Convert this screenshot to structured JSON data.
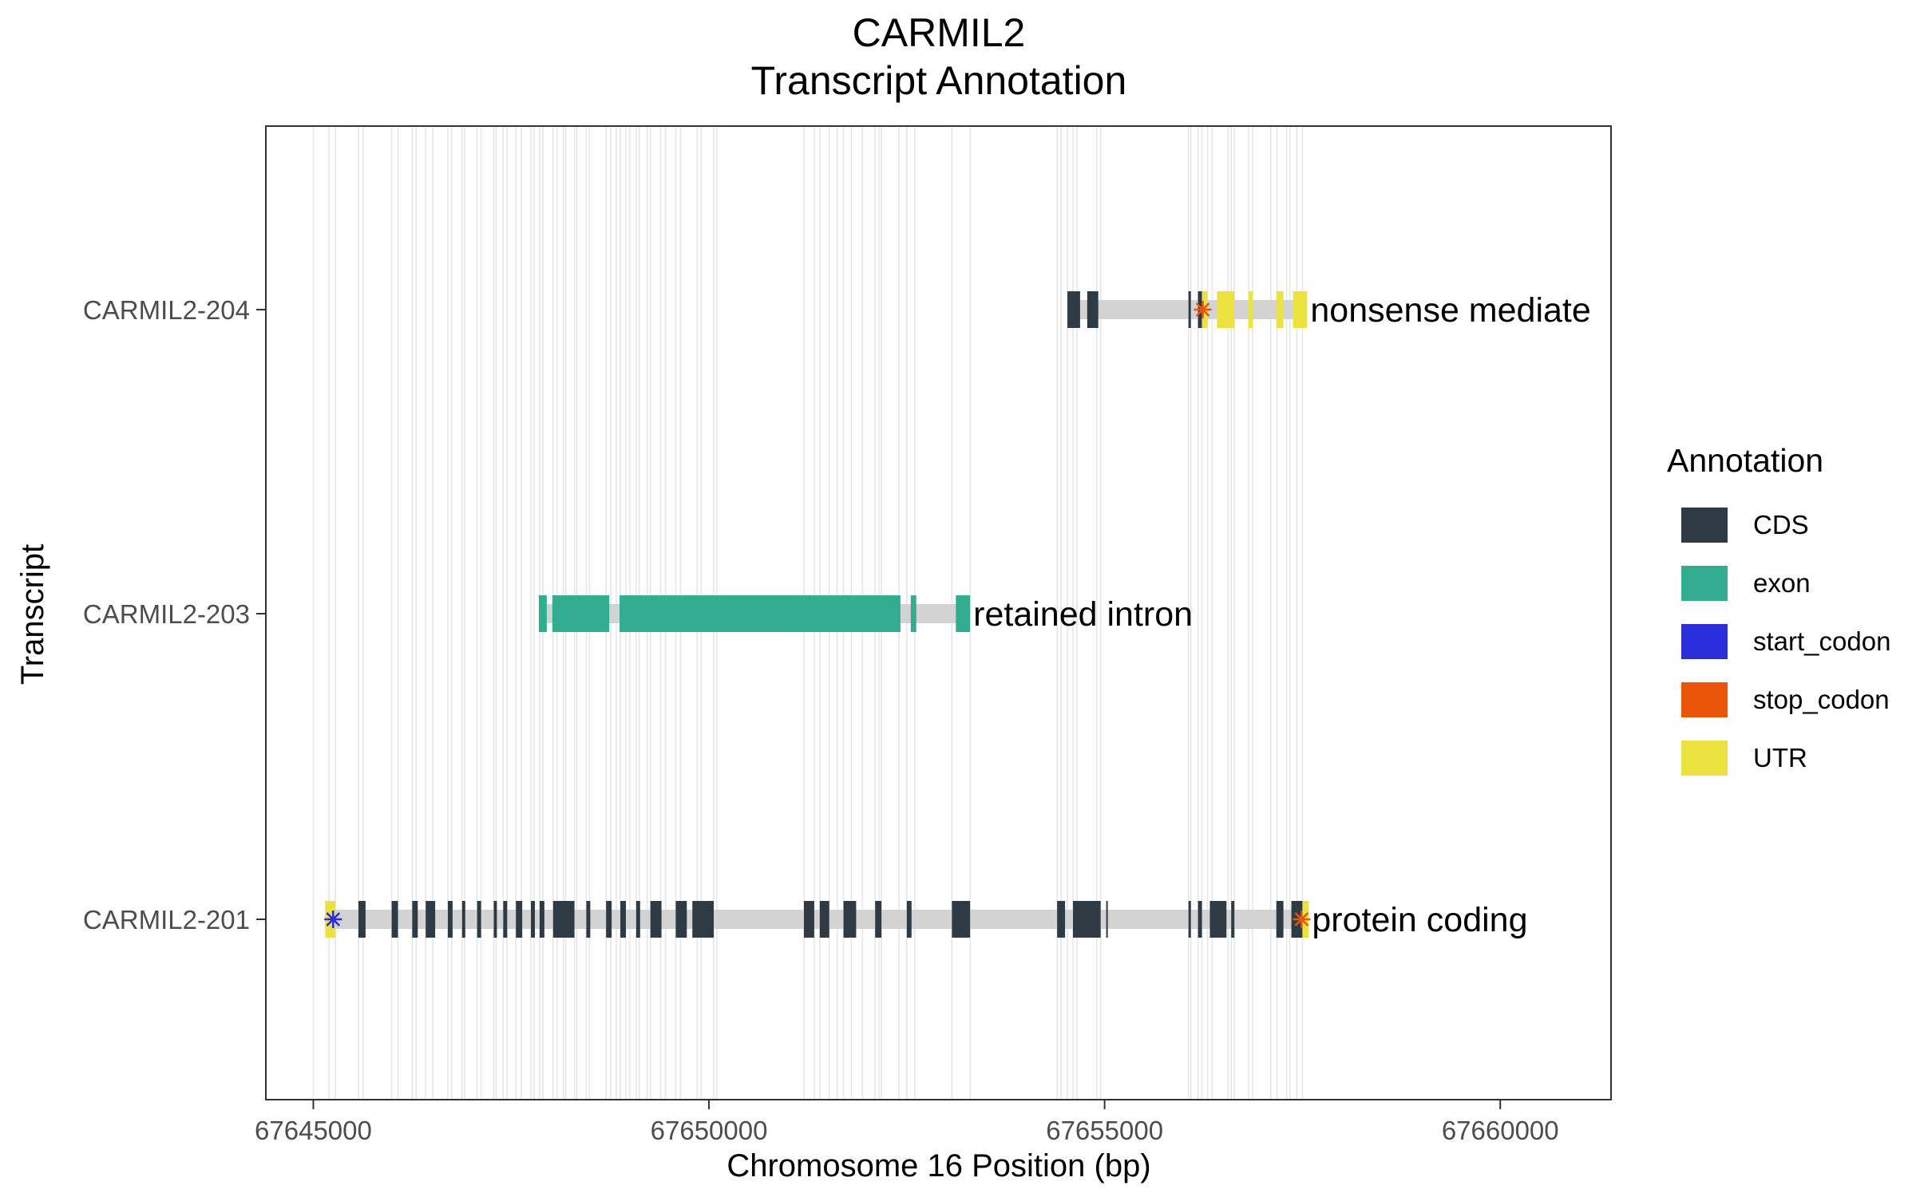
{
  "chart_data": {
    "type": "gene-structure",
    "title_line1": "CARMIL2",
    "title_line2": "Transcript Annotation",
    "xlabel": "Chromosome 16 Position (bp)",
    "ylabel": "Transcript",
    "xlim": [
      67644400,
      67661400
    ],
    "xticks": [
      67645000,
      67650000,
      67655000,
      67660000
    ],
    "xtick_labels": [
      "67645000",
      "67650000",
      "67655000",
      "67660000"
    ],
    "legend": {
      "title": "Annotation",
      "position": "right",
      "items": [
        {
          "label": "CDS",
          "color": "#2e3b45"
        },
        {
          "label": "exon",
          "color": "#33ad8f"
        },
        {
          "label": "start_codon",
          "color": "#2b2fdb"
        },
        {
          "label": "stop_codon",
          "color": "#eb5508"
        },
        {
          "label": "UTR",
          "color": "#ebe13f"
        }
      ]
    },
    "colors": {
      "CDS": "#2e3b45",
      "exon": "#33ad8f",
      "UTR": "#ebe13f",
      "start_codon": "#2b2fdb",
      "stop_codon": "#eb5508",
      "intron": "#d3d3d3",
      "gridline": "#e6e6e6"
    },
    "gridlines_x": [
      67645000,
      67645200,
      67645280,
      67645570,
      67645630,
      67645990,
      67646070,
      67646250,
      67646300,
      67646420,
      67646510,
      67646700,
      67646750,
      67646880,
      67646910,
      67647070,
      67647120,
      67647280,
      67647310,
      67647400,
      67647450,
      67647560,
      67647630,
      67647750,
      67647790,
      67647860,
      67647900,
      67648030,
      67648080,
      67648160,
      67648190,
      67648300,
      67648330,
      67648450,
      67648490,
      67648700,
      67648760,
      67648830,
      67648880,
      67648950,
      67649000,
      67649080,
      67649120,
      67649220,
      67649260,
      67649390,
      67649450,
      67649580,
      67649640,
      67649850,
      67649900,
      67650060,
      67650100,
      67651200,
      67651330,
      67651400,
      67651520,
      67651620,
      67651700,
      67651800,
      67651940,
      67652100,
      67652150,
      67652180,
      67652400,
      67652500,
      67652600,
      67653070,
      67653300,
      67654400,
      67654450,
      67654530,
      67654600,
      67654650,
      67654900,
      67654950,
      67656060,
      67656090,
      67656180,
      67656230,
      67656300,
      67656360,
      67656560,
      67656600,
      67656640,
      67656820,
      67656870,
      67657100,
      67657180,
      67657300,
      67657340,
      67657430,
      67657500
    ],
    "transcripts": [
      {
        "name": "CARMIL2-204",
        "biotype_label": "nonsense mediate",
        "span": [
          67654530,
          67657560
        ],
        "features": [
          {
            "type": "CDS",
            "start": 67654530,
            "end": 67654690
          },
          {
            "type": "CDS",
            "start": 67654780,
            "end": 67654920
          },
          {
            "type": "CDS",
            "start": 67656060,
            "end": 67656090
          },
          {
            "type": "CDS",
            "start": 67656180,
            "end": 67656230
          },
          {
            "type": "UTR",
            "start": 67656230,
            "end": 67656300
          },
          {
            "type": "UTR",
            "start": 67656420,
            "end": 67656640
          },
          {
            "type": "UTR",
            "start": 67656820,
            "end": 67656870
          },
          {
            "type": "UTR",
            "start": 67657170,
            "end": 67657260
          },
          {
            "type": "UTR",
            "start": 67657380,
            "end": 67657560
          }
        ],
        "codons": [
          {
            "type": "stop_codon",
            "pos": 67656240
          }
        ]
      },
      {
        "name": "CARMIL2-203",
        "biotype_label": "retained intron",
        "span": [
          67647850,
          67653300
        ],
        "features": [
          {
            "type": "exon",
            "start": 67647850,
            "end": 67647950
          },
          {
            "type": "exon",
            "start": 67648020,
            "end": 67648740
          },
          {
            "type": "exon",
            "start": 67648870,
            "end": 67652420
          },
          {
            "type": "exon",
            "start": 67652550,
            "end": 67652620
          },
          {
            "type": "exon",
            "start": 67653120,
            "end": 67653300
          }
        ],
        "codons": []
      },
      {
        "name": "CARMIL2-201",
        "biotype_label": "protein coding",
        "span": [
          67645150,
          67657580
        ],
        "features": [
          {
            "type": "UTR",
            "start": 67645150,
            "end": 67645280
          },
          {
            "type": "CDS",
            "start": 67645570,
            "end": 67645660
          },
          {
            "type": "CDS",
            "start": 67645990,
            "end": 67646070
          },
          {
            "type": "CDS",
            "start": 67646250,
            "end": 67646320
          },
          {
            "type": "CDS",
            "start": 67646420,
            "end": 67646540
          },
          {
            "type": "CDS",
            "start": 67646700,
            "end": 67646760
          },
          {
            "type": "CDS",
            "start": 67646880,
            "end": 67646920
          },
          {
            "type": "CDS",
            "start": 67647070,
            "end": 67647120
          },
          {
            "type": "CDS",
            "start": 67647280,
            "end": 67647320
          },
          {
            "type": "CDS",
            "start": 67647400,
            "end": 67647450
          },
          {
            "type": "CDS",
            "start": 67647560,
            "end": 67647640
          },
          {
            "type": "CDS",
            "start": 67647750,
            "end": 67647800
          },
          {
            "type": "CDS",
            "start": 67647860,
            "end": 67647920
          },
          {
            "type": "CDS",
            "start": 67648030,
            "end": 67648300
          },
          {
            "type": "CDS",
            "start": 67648450,
            "end": 67648500
          },
          {
            "type": "CDS",
            "start": 67648700,
            "end": 67648770
          },
          {
            "type": "CDS",
            "start": 67648880,
            "end": 67648950
          },
          {
            "type": "CDS",
            "start": 67649080,
            "end": 67649130
          },
          {
            "type": "CDS",
            "start": 67649260,
            "end": 67649400
          },
          {
            "type": "CDS",
            "start": 67649580,
            "end": 67649720
          },
          {
            "type": "CDS",
            "start": 67649790,
            "end": 67650060
          },
          {
            "type": "CDS",
            "start": 67651200,
            "end": 67651330
          },
          {
            "type": "CDS",
            "start": 67651400,
            "end": 67651520
          },
          {
            "type": "CDS",
            "start": 67651700,
            "end": 67651860
          },
          {
            "type": "CDS",
            "start": 67652100,
            "end": 67652180
          },
          {
            "type": "CDS",
            "start": 67652500,
            "end": 67652560
          },
          {
            "type": "CDS",
            "start": 67653070,
            "end": 67653300
          },
          {
            "type": "CDS",
            "start": 67654400,
            "end": 67654500
          },
          {
            "type": "CDS",
            "start": 67654600,
            "end": 67654950
          },
          {
            "type": "CDS",
            "start": 67655020,
            "end": 67655040
          },
          {
            "type": "CDS",
            "start": 67656060,
            "end": 67656090
          },
          {
            "type": "CDS",
            "start": 67656180,
            "end": 67656230
          },
          {
            "type": "CDS",
            "start": 67656330,
            "end": 67656540
          },
          {
            "type": "CDS",
            "start": 67656600,
            "end": 67656640
          },
          {
            "type": "CDS",
            "start": 67657170,
            "end": 67657260
          },
          {
            "type": "CDS",
            "start": 67657360,
            "end": 67657500
          },
          {
            "type": "UTR",
            "start": 67657500,
            "end": 67657580
          }
        ],
        "codons": [
          {
            "type": "start_codon",
            "pos": 67645250
          },
          {
            "type": "stop_codon",
            "pos": 67657490
          }
        ]
      }
    ]
  }
}
